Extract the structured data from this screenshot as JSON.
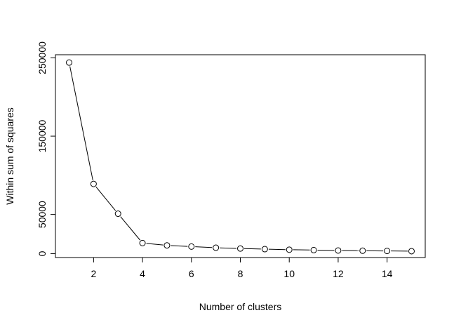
{
  "chart_data": {
    "type": "line",
    "title": "",
    "xlabel": "Number of clusters",
    "ylabel": "Within sum of squares",
    "x": [
      1,
      2,
      3,
      4,
      5,
      6,
      7,
      8,
      9,
      10,
      11,
      12,
      13,
      14,
      15
    ],
    "series": [
      {
        "values": [
          244000,
          89000,
          51000,
          13500,
          10500,
          9000,
          7500,
          6500,
          5700,
          5000,
          4500,
          4000,
          3700,
          3400,
          3100
        ]
      }
    ],
    "xlim": [
      0.44,
      15.56
    ],
    "ylim": [
      -5000,
      254000
    ],
    "xticks": [
      2,
      4,
      6,
      8,
      10,
      12,
      14
    ],
    "yticks": [
      0,
      50000,
      150000,
      250000
    ],
    "grid": false,
    "legend": "none",
    "marker": "open-circle",
    "line_color": "#000000"
  }
}
